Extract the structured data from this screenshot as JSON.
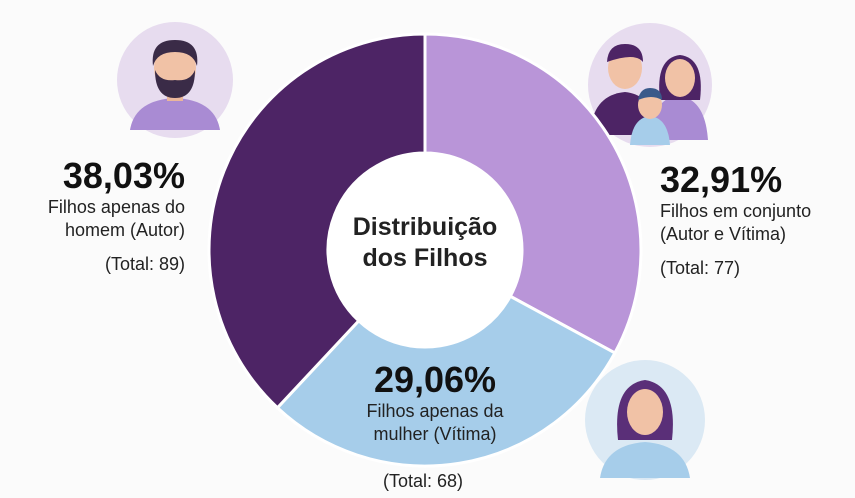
{
  "chart_data": {
    "type": "donut",
    "title": "Distribuição dos Filhos",
    "categories": [
      "Filhos em conjunto (Autor e Vítima)",
      "Filhos apenas da mulher (Vítima)",
      "Filhos apenas do homem (Autor)"
    ],
    "values": [
      32.91,
      29.06,
      38.03
    ],
    "value_labels": [
      "32,91%",
      "29,06%",
      "38,03%"
    ],
    "total_labels": [
      "(Total: 77)",
      "(Total: 68)",
      "(Total: 89)"
    ],
    "colors": [
      "#b995d8",
      "#a6cdea",
      "#4d2465"
    ]
  }
}
